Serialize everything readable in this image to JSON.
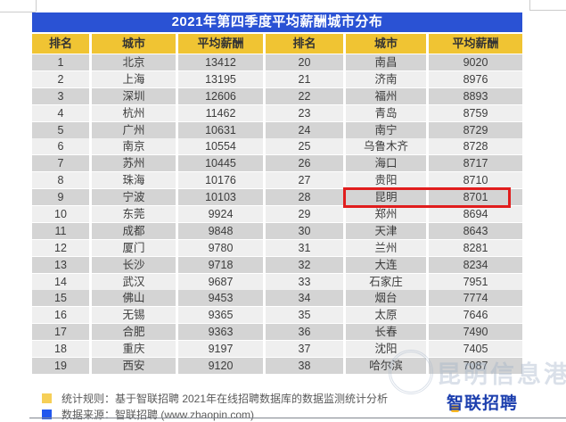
{
  "title": "2021年第四季度平均薪酬城市分布",
  "table": {
    "columns": [
      "排名",
      "城市",
      "平均薪酬",
      "排名",
      "城市",
      "平均薪酬"
    ]
  },
  "chart_data": {
    "type": "table",
    "title": "2021年第四季度平均薪酬城市分布",
    "columns": [
      "排名",
      "城市",
      "平均薪酬"
    ],
    "layout": "split-two-halves: ranks 1-19 in left half, ranks 20-38 in right half",
    "rows": [
      [
        1,
        "北京",
        13412
      ],
      [
        2,
        "上海",
        13195
      ],
      [
        3,
        "深圳",
        12606
      ],
      [
        4,
        "杭州",
        11462
      ],
      [
        5,
        "广州",
        10631
      ],
      [
        6,
        "南京",
        10554
      ],
      [
        7,
        "苏州",
        10445
      ],
      [
        8,
        "珠海",
        10176
      ],
      [
        9,
        "宁波",
        10103
      ],
      [
        10,
        "东莞",
        9924
      ],
      [
        11,
        "成都",
        9848
      ],
      [
        12,
        "厦门",
        9780
      ],
      [
        13,
        "长沙",
        9718
      ],
      [
        14,
        "武汉",
        9687
      ],
      [
        15,
        "佛山",
        9453
      ],
      [
        16,
        "无锡",
        9365
      ],
      [
        17,
        "合肥",
        9363
      ],
      [
        18,
        "重庆",
        9197
      ],
      [
        19,
        "西安",
        9120
      ],
      [
        20,
        "南昌",
        9020
      ],
      [
        21,
        "济南",
        8976
      ],
      [
        22,
        "福州",
        8893
      ],
      [
        23,
        "青岛",
        8759
      ],
      [
        24,
        "南宁",
        8729
      ],
      [
        25,
        "乌鲁木齐",
        8728
      ],
      [
        26,
        "海口",
        8717
      ],
      [
        27,
        "贵阳",
        8710
      ],
      [
        28,
        "昆明",
        8701
      ],
      [
        29,
        "郑州",
        8694
      ],
      [
        30,
        "天津",
        8643
      ],
      [
        31,
        "兰州",
        8281
      ],
      [
        32,
        "大连",
        8234
      ],
      [
        33,
        "石家庄",
        7951
      ],
      [
        34,
        "烟台",
        7774
      ],
      [
        35,
        "太原",
        7646
      ],
      [
        36,
        "长春",
        7490
      ],
      [
        37,
        "沈阳",
        7405
      ],
      [
        38,
        "哈尔滨",
        7087
      ]
    ],
    "highlight": {
      "rank": 28,
      "city": "昆明",
      "salary": 8701
    }
  },
  "footer": {
    "legend": [
      {
        "color": "#f6cf57",
        "text": "统计规则：基于智联招聘  2021年在线招聘数据库的数据监测统计分析"
      },
      {
        "color": "#2257ee",
        "text": "数据来源：智联招聘 (www.zhaopin.com)"
      }
    ],
    "logo_text": "智联招聘",
    "watermark": "昆明信息港"
  },
  "colors": {
    "title_bg": "#2a52d4",
    "header_bg": "#f0c433",
    "row_odd": "#d4d4d4",
    "row_even": "#efefef",
    "highlight_border": "#e11d1d",
    "legend_yellow": "#f6cf57",
    "legend_blue": "#2257ee",
    "logo_blue": "#1c3fae",
    "logo_accent": "#ffb81f"
  }
}
